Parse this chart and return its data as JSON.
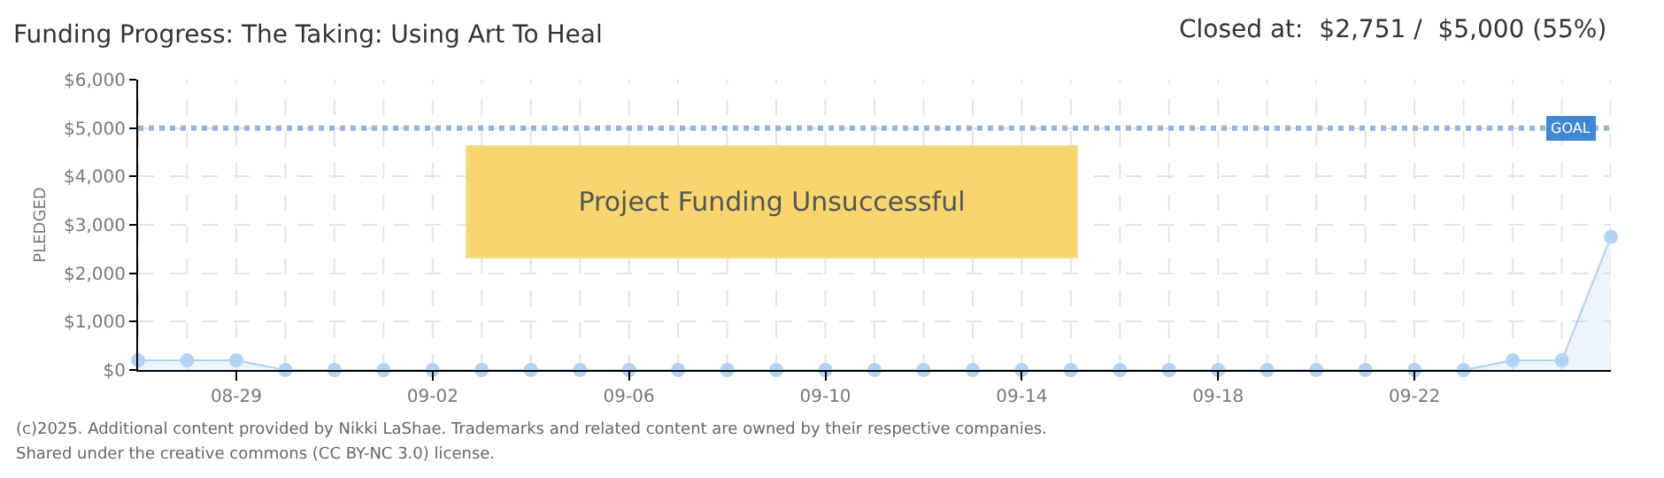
{
  "chart_data": {
    "type": "area",
    "title": "Funding Progress: The Taking: Using Art To Heal",
    "subtitle": "Closed at:  $2,751 /  $5,000 (55%)",
    "ylabel": "PLEDGED",
    "categories": [
      null,
      null,
      "08-29",
      null,
      null,
      null,
      "09-02",
      null,
      null,
      null,
      "09-06",
      null,
      null,
      null,
      "09-10",
      null,
      null,
      null,
      "09-14",
      null,
      null,
      null,
      "09-18",
      null,
      null,
      null,
      "09-22",
      null,
      null,
      null,
      null
    ],
    "series": [
      {
        "color": "#b3d3f5",
        "values": [
          200,
          200,
          200,
          0,
          0,
          0,
          0,
          0,
          0,
          0,
          0,
          0,
          0,
          0,
          0,
          0,
          0,
          0,
          0,
          0,
          0,
          0,
          0,
          0,
          0,
          0,
          0,
          0,
          200,
          200,
          2751
        ]
      }
    ],
    "ylim": [
      0,
      6000
    ],
    "yticks": [
      {
        "value": 0,
        "label": "$0"
      },
      {
        "value": 1000,
        "label": "$1,000"
      },
      {
        "value": 2000,
        "label": "$2,000"
      },
      {
        "value": 3000,
        "label": "$3,000"
      },
      {
        "value": 4000,
        "label": "$4,000"
      },
      {
        "value": 5000,
        "label": "$5,000"
      },
      {
        "value": 6000,
        "label": "$6,000"
      }
    ],
    "ref_lines": [
      {
        "axis": "y",
        "value": 5000,
        "label": "GOAL",
        "color": "#8fb6e0",
        "line_style": "dotted"
      }
    ],
    "annotations": [
      "Project Funding Unsuccessful",
      "(c)2025. Additional content provided by Nikki LaShae. Trademarks and related content are owned by their respective companies.",
      "Shared under the creative commons (CC BY-NC 3.0) license."
    ],
    "grid": true,
    "marker": "circle",
    "legend": false
  }
}
